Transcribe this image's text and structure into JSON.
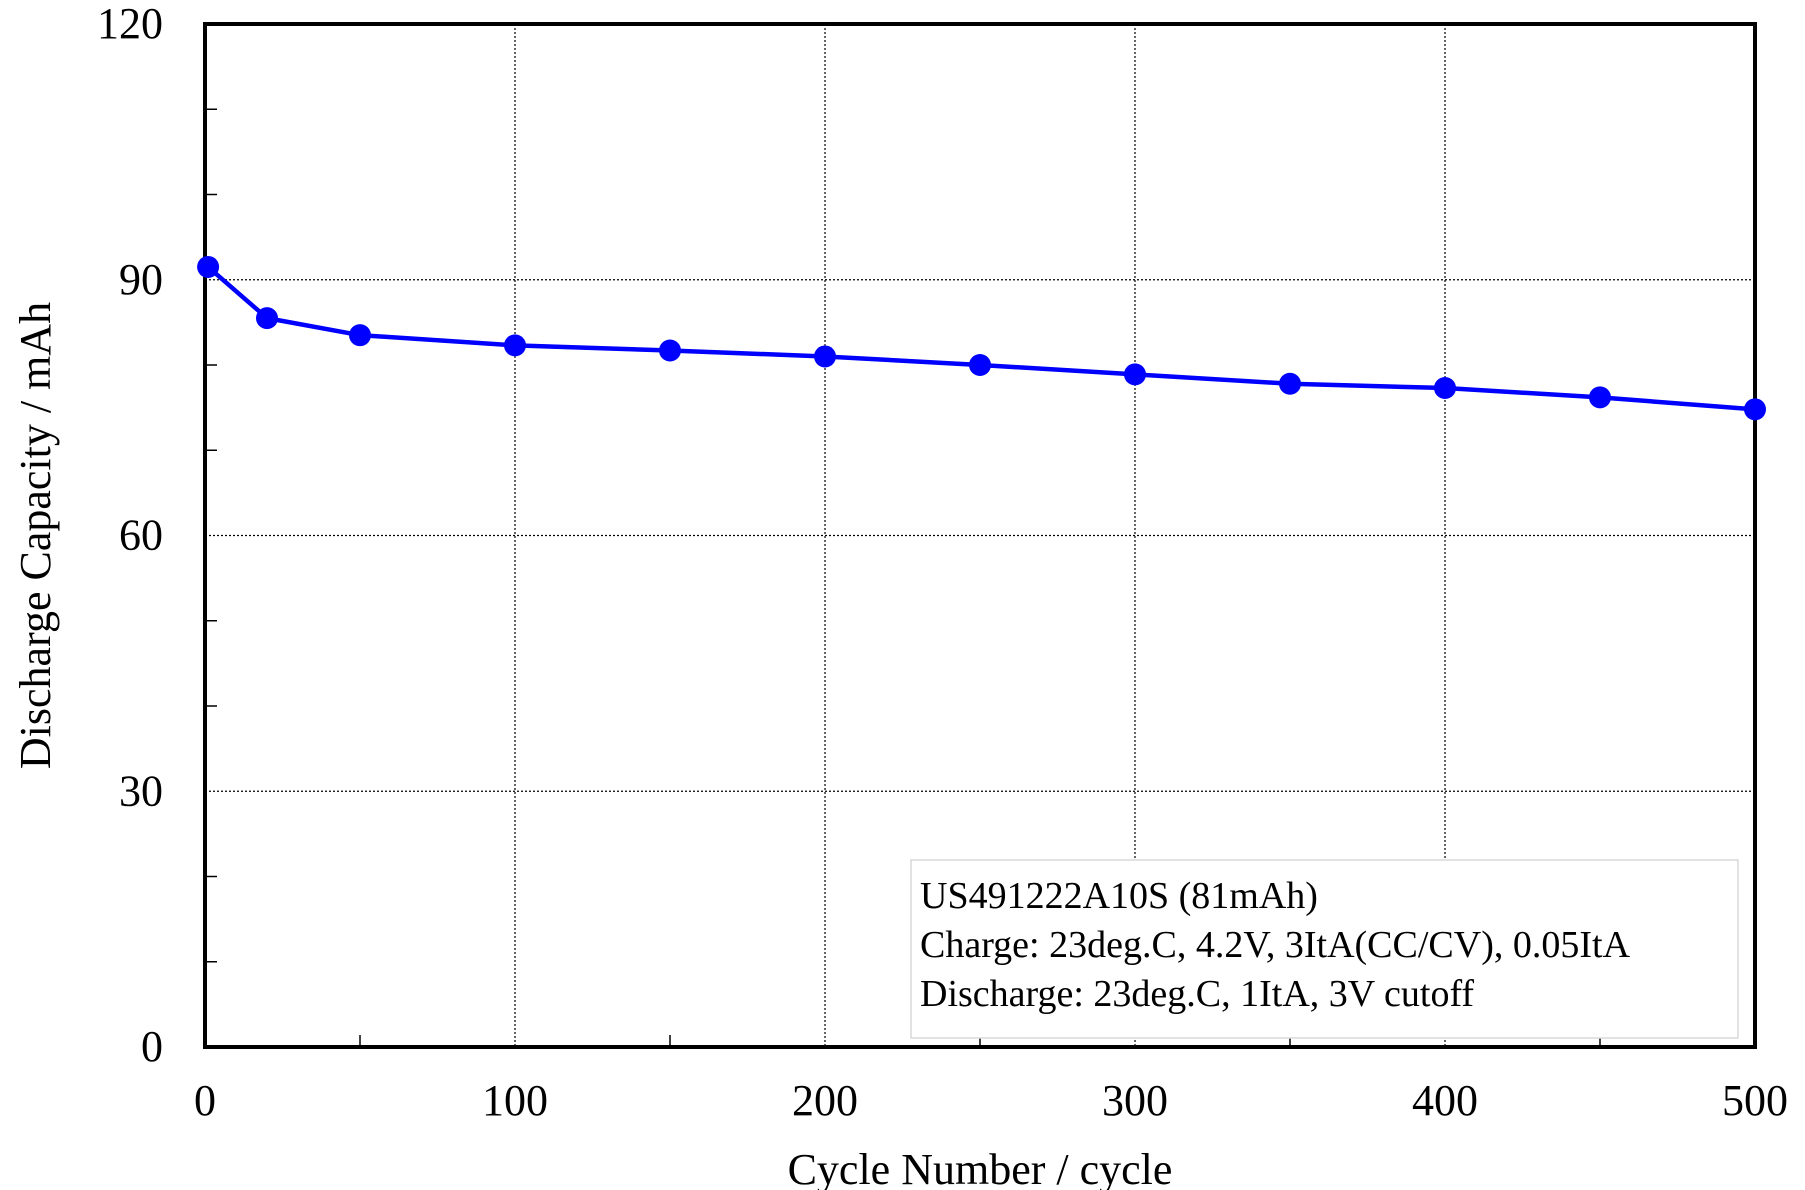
{
  "chart_data": {
    "type": "line",
    "title": "",
    "xlabel": "Cycle Number / cycle",
    "ylabel": "Discharge Capacity / mAh",
    "xlim": [
      0,
      500
    ],
    "ylim": [
      0,
      120
    ],
    "x_ticks": [
      0,
      100,
      200,
      300,
      400,
      500
    ],
    "y_ticks": [
      0,
      30,
      60,
      90,
      120
    ],
    "x_tick_labels": [
      "0",
      "100",
      "200",
      "300",
      "400",
      "500"
    ],
    "y_tick_labels": [
      "0",
      "30",
      "60",
      "90",
      "120"
    ],
    "y_minor_step": 10,
    "x_minor_step": 50,
    "grid": true,
    "series": [
      {
        "color": "#0000ff",
        "x": [
          1,
          20,
          50,
          100,
          150,
          200,
          250,
          300,
          350,
          400,
          450,
          500
        ],
        "y": [
          91.5,
          85.5,
          83.5,
          82.3,
          81.7,
          81.0,
          80.0,
          78.9,
          77.8,
          77.3,
          76.2,
          74.8
        ]
      }
    ],
    "annotation": {
      "position": "bottom-right",
      "lines": [
        "US491222A10S (81mAh)",
        "Charge: 23deg.C, 4.2V, 3ItA(CC/CV), 0.05ItA",
        "Discharge: 23deg.C, 1ItA, 3V cutoff"
      ]
    }
  }
}
